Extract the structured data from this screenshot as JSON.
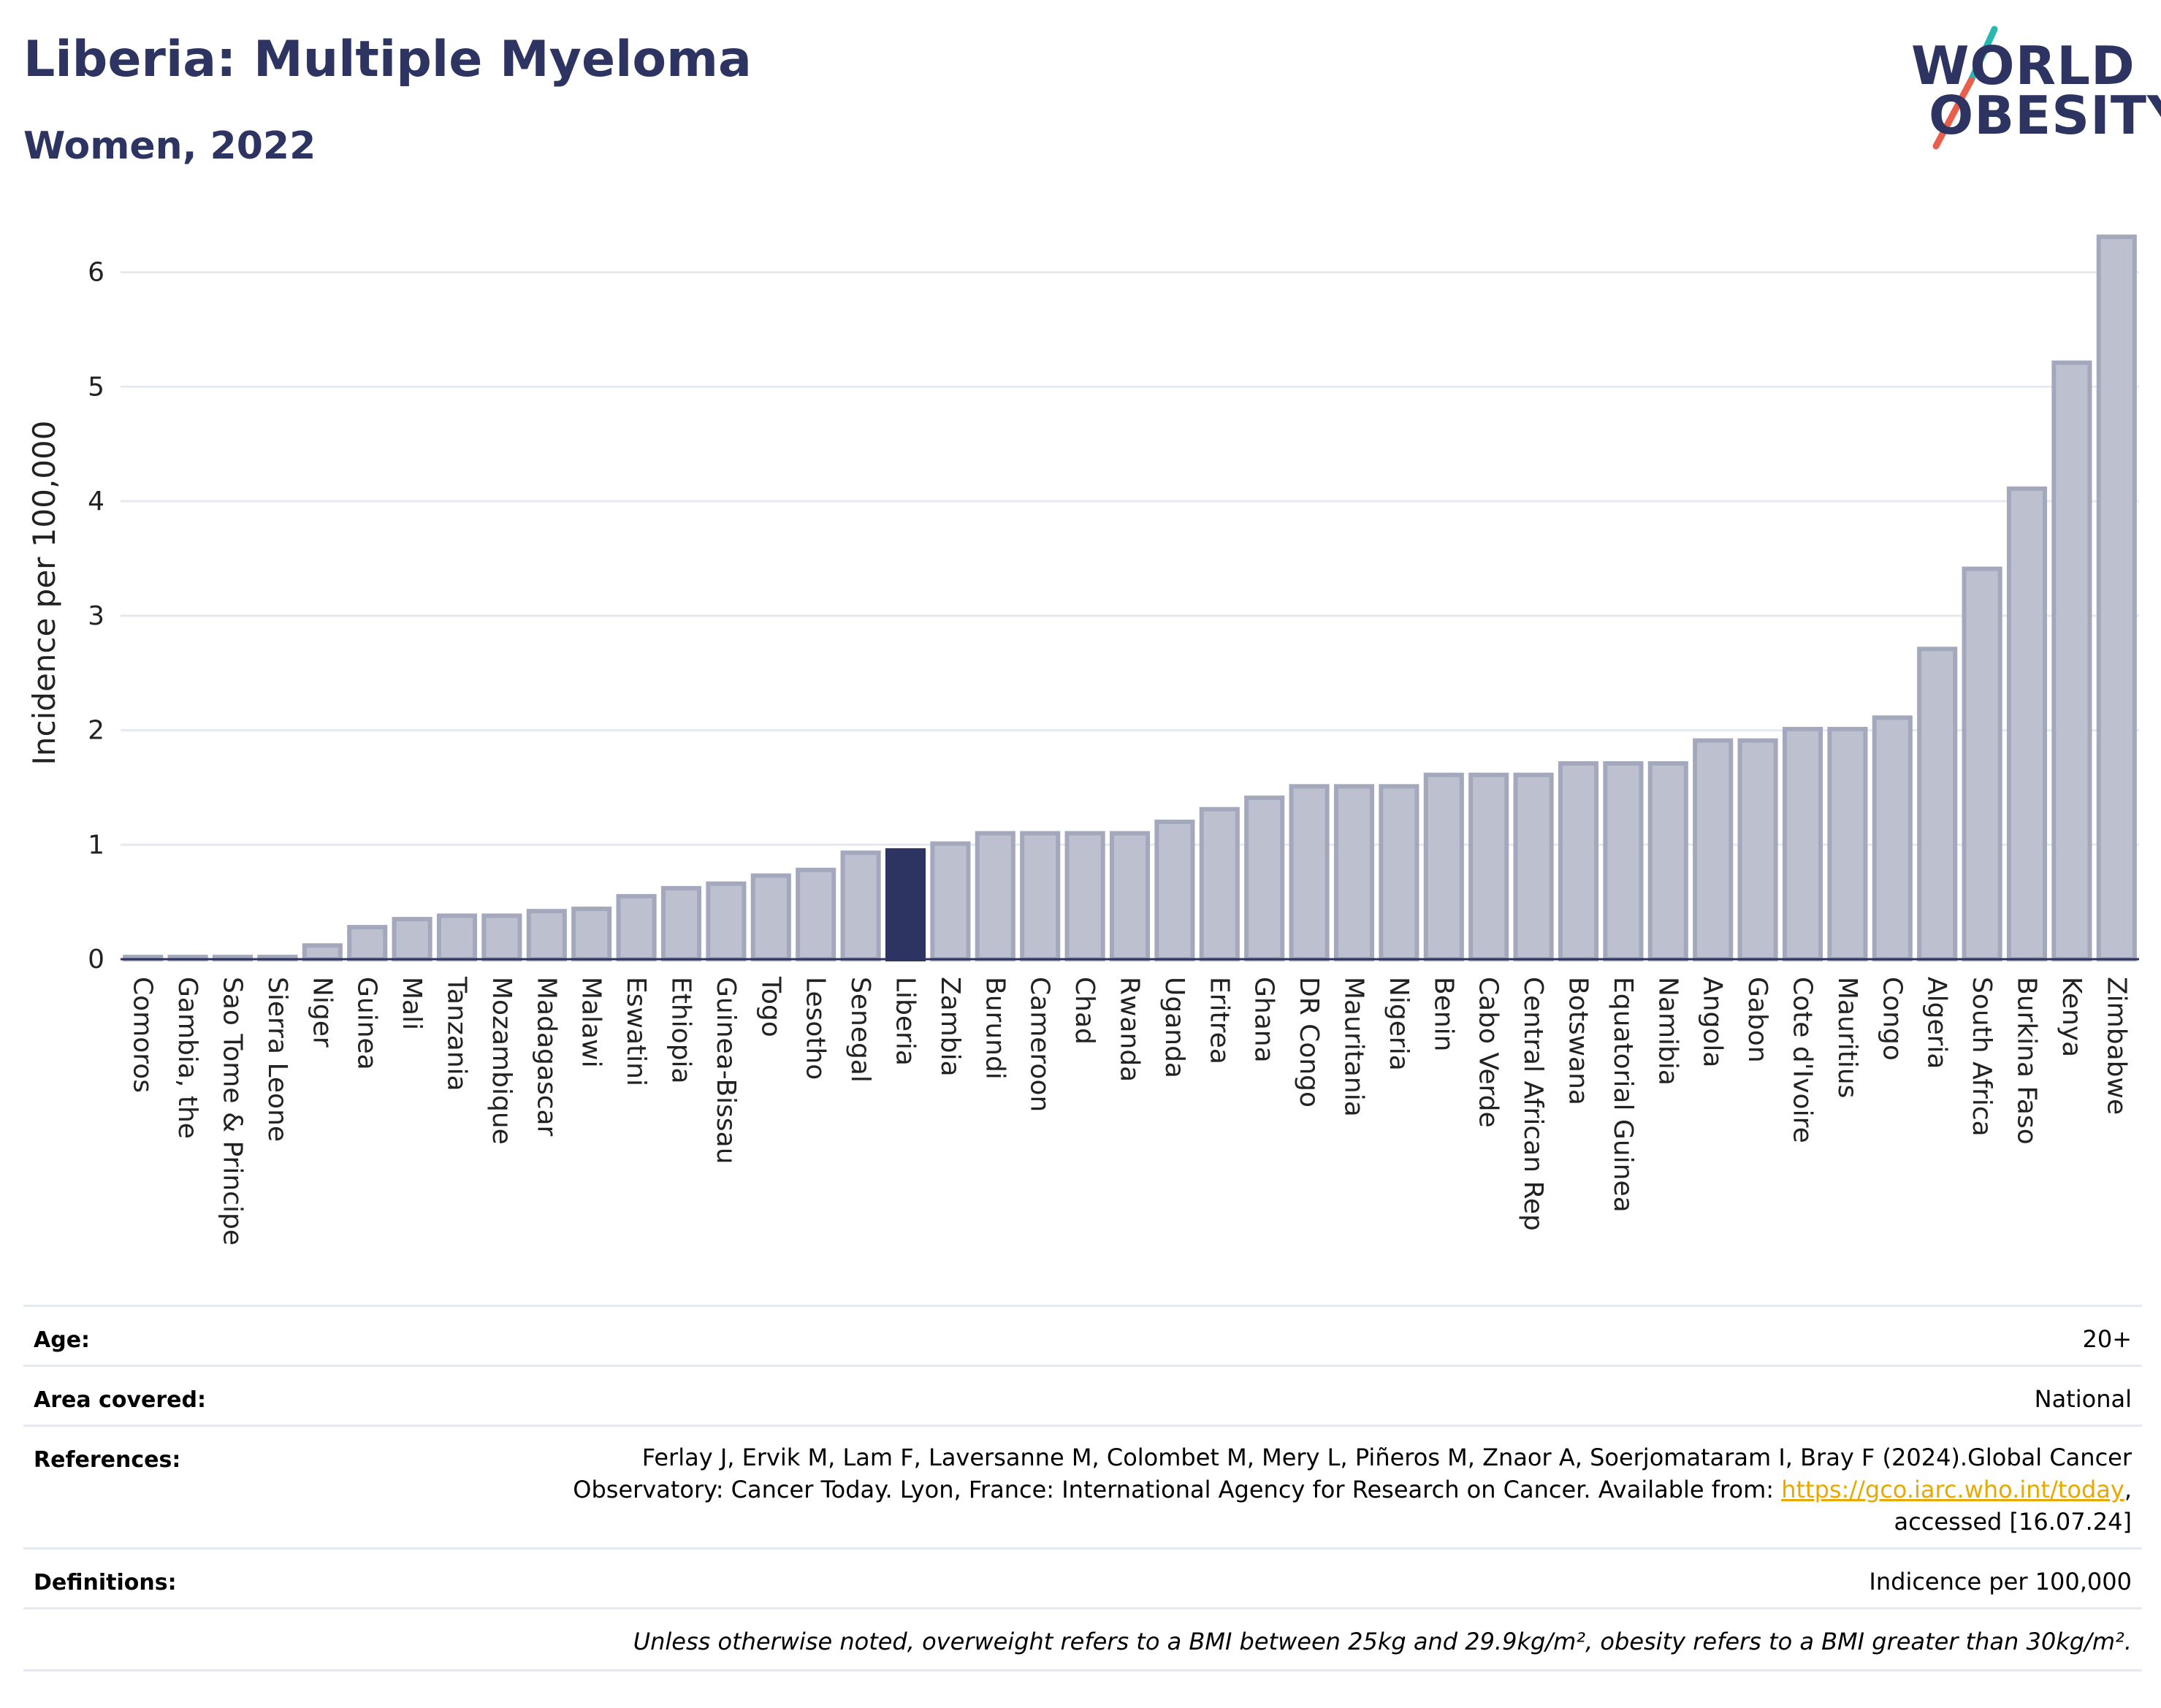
{
  "title": "Liberia: Multiple Myeloma",
  "subtitle": "Women, 2022",
  "logo": {
    "line1": "WORLD",
    "line2": "OBESITY",
    "accent_colors": [
      "#2ab7b0",
      "#e8604c"
    ]
  },
  "colors": {
    "bar": "#bcc0cf",
    "bar_border": "#a3a8bd",
    "highlight": "#2d3461",
    "title": "#2d3461",
    "grid": "#e6e9f0",
    "link": "#e8a800"
  },
  "chart_data": {
    "type": "bar",
    "ylabel": "Incidence per 100,000",
    "xlabel": "",
    "ylim": [
      0,
      6.4
    ],
    "yticks": [
      0,
      1,
      2,
      3,
      4,
      5,
      6
    ],
    "grid": true,
    "highlight": "Liberia",
    "categories": [
      "Comoros",
      "Gambia, the",
      "Sao Tome & Principe",
      "Sierra Leone",
      "Niger",
      "Guinea",
      "Mali",
      "Tanzania",
      "Mozambique",
      "Madagascar",
      "Malawi",
      "Eswatini",
      "Ethiopia",
      "Guinea-Bissau",
      "Togo",
      "Lesotho",
      "Senegal",
      "Liberia",
      "Zambia",
      "Burundi",
      "Cameroon",
      "Chad",
      "Rwanda",
      "Uganda",
      "Eritrea",
      "Ghana",
      "DR Congo",
      "Mauritania",
      "Nigeria",
      "Benin",
      "Cabo Verde",
      "Central African Rep",
      "Botswana",
      "Equatorial Guinea",
      "Namibia",
      "Angola",
      "Gabon",
      "Cote d'Ivoire",
      "Mauritius",
      "Congo",
      "Algeria",
      "South Africa",
      "Burkina Faso",
      "Kenya",
      "Zimbabwe"
    ],
    "values": [
      0.02,
      0.02,
      0.02,
      0.02,
      0.12,
      0.28,
      0.35,
      0.38,
      0.38,
      0.42,
      0.44,
      0.55,
      0.62,
      0.66,
      0.73,
      0.78,
      0.93,
      0.95,
      1.01,
      1.1,
      1.1,
      1.1,
      1.1,
      1.2,
      1.31,
      1.41,
      1.51,
      1.51,
      1.51,
      1.61,
      1.61,
      1.61,
      1.71,
      1.71,
      1.71,
      1.91,
      1.91,
      2.01,
      2.01,
      2.11,
      2.71,
      3.41,
      4.11,
      5.21,
      6.31
    ]
  },
  "info": {
    "age_label": "Age:",
    "age_value": "20+",
    "area_label": "Area covered:",
    "area_value": "National",
    "references_label": "References:",
    "references_line1": "Ferlay J, Ervik M, Lam F, Laversanne M, Colombet M, Mery L, Piñeros M, Znaor A, Soerjomataram I, Bray F (2024).Global Cancer",
    "references_line2": "Observatory: Cancer Today. Lyon, France: International Agency for Research on Cancer. Available from:",
    "references_link": "https://gco.iarc.who.int/today",
    "references_line3": "accessed [16.07.24]",
    "definitions_label": "Definitions:",
    "definitions_value": "Indicence per 100,000",
    "note": "Unless otherwise noted, overweight refers to a BMI between 25kg and 29.9kg/m², obesity refers to a BMI greater than 30kg/m²."
  }
}
